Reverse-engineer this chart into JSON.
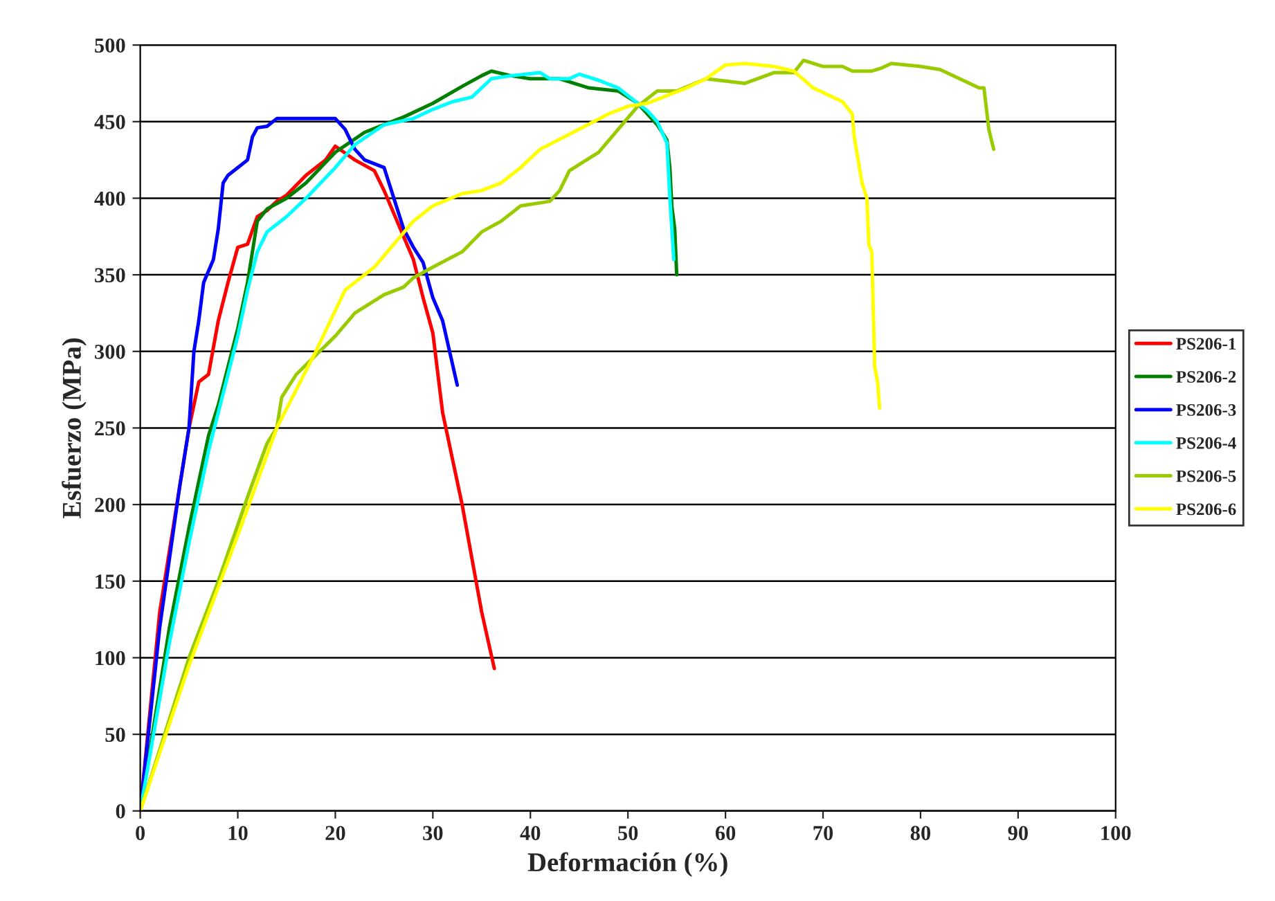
{
  "chart_data": {
    "type": "line",
    "xlabel": "Deformación (%)",
    "ylabel": "Esfuerzo (MPa)",
    "xlim": [
      0,
      100
    ],
    "xticks": [
      0,
      10,
      20,
      30,
      40,
      50,
      60,
      70,
      80,
      90,
      100
    ],
    "ylim": [
      0,
      500
    ],
    "yticks": [
      0,
      50,
      100,
      150,
      200,
      250,
      300,
      350,
      400,
      450,
      500
    ],
    "grid": "y",
    "legend": "right",
    "marker": "none",
    "line_style": "solid",
    "series": [
      {
        "name": "PS206-1",
        "color": "#ff0000",
        "x": [
          0,
          2,
          4,
          5,
          6,
          7,
          8,
          9,
          10,
          11,
          12,
          13,
          14,
          15,
          17,
          19,
          20,
          22,
          24,
          25,
          27,
          28,
          29,
          30,
          31,
          32,
          33,
          34,
          35,
          36.3
        ],
        "values": [
          0,
          130,
          210,
          250,
          280,
          285,
          320,
          345,
          368,
          370,
          388,
          392,
          398,
          402,
          415,
          425,
          434,
          425,
          418,
          405,
          375,
          360,
          335,
          312,
          260,
          230,
          200,
          165,
          130,
          93
        ]
      },
      {
        "name": "PS206-2",
        "color": "#008000",
        "x": [
          0,
          3,
          5,
          7,
          8,
          9,
          10,
          11,
          12,
          13,
          15,
          17,
          20,
          23,
          25,
          27,
          30,
          33,
          35,
          36,
          38,
          40,
          43,
          46,
          49,
          51,
          52,
          53,
          54,
          54.3,
          54.5,
          54.8,
          55
        ],
        "values": [
          0,
          120,
          185,
          245,
          265,
          290,
          315,
          345,
          385,
          393,
          400,
          410,
          430,
          443,
          448,
          453,
          462,
          473,
          480,
          483,
          480,
          478,
          478,
          472,
          470,
          462,
          455,
          448,
          438,
          420,
          395,
          380,
          350
        ]
      },
      {
        "name": "PS206-3",
        "color": "#0000ff",
        "x": [
          0,
          2,
          3,
          4,
          5,
          5.5,
          6,
          6.5,
          7.5,
          8,
          8.5,
          9,
          10,
          11,
          11.5,
          12,
          13,
          14,
          16,
          18,
          20,
          21,
          22,
          23,
          25,
          27,
          28,
          29,
          30,
          31,
          32.5
        ],
        "values": [
          0,
          120,
          165,
          210,
          250,
          300,
          320,
          345,
          360,
          380,
          410,
          415,
          420,
          425,
          440,
          446,
          447,
          452,
          452,
          452,
          452,
          445,
          432,
          425,
          420,
          380,
          368,
          358,
          335,
          320,
          278
        ]
      },
      {
        "name": "PS206-4",
        "color": "#00ffff",
        "x": [
          0,
          3,
          5,
          7,
          9,
          10,
          11,
          12,
          13,
          15,
          17,
          20,
          22,
          25,
          28,
          30,
          32,
          34,
          36,
          38,
          41,
          42,
          44,
          45,
          47,
          49,
          51,
          52,
          53,
          54,
          54.3,
          54.7
        ],
        "values": [
          0,
          110,
          175,
          235,
          285,
          310,
          340,
          365,
          378,
          388,
          400,
          420,
          435,
          448,
          452,
          458,
          463,
          466,
          478,
          480,
          482,
          478,
          478,
          481,
          477,
          472,
          462,
          457,
          450,
          436,
          400,
          360
        ]
      },
      {
        "name": "PS206-5",
        "color": "#99cc00",
        "x": [
          0,
          5,
          8,
          11,
          13,
          14,
          14.5,
          16,
          20,
          22,
          25,
          27,
          28,
          30,
          33,
          35,
          37,
          39,
          42,
          43,
          44,
          47,
          49,
          51,
          53,
          55,
          58,
          62,
          65,
          67,
          68,
          70,
          72,
          73,
          75,
          76,
          77,
          80,
          82,
          84,
          86,
          86.5,
          87,
          87.5
        ],
        "values": [
          0,
          100,
          150,
          205,
          240,
          250,
          270,
          285,
          310,
          325,
          337,
          342,
          348,
          355,
          365,
          378,
          385,
          395,
          398,
          405,
          418,
          430,
          445,
          460,
          470,
          470,
          478,
          475,
          482,
          482,
          490,
          486,
          486,
          483,
          483,
          485,
          488,
          486,
          484,
          478,
          472,
          472,
          445,
          432
        ]
      },
      {
        "name": "PS206-6",
        "color": "#ffff00",
        "x": [
          0,
          5,
          10,
          14,
          18,
          21,
          24,
          26,
          28,
          30,
          33,
          35,
          37,
          39,
          41,
          45,
          48,
          50,
          52,
          54,
          56,
          58,
          60,
          62,
          65,
          67,
          69,
          72,
          73,
          73.2,
          74,
          74.5,
          74.7,
          75,
          75.3,
          75.6,
          75.8
        ],
        "values": [
          0,
          95,
          180,
          250,
          300,
          340,
          355,
          370,
          385,
          395,
          403,
          405,
          410,
          420,
          432,
          445,
          455,
          460,
          462,
          467,
          472,
          478,
          487,
          488,
          486,
          483,
          472,
          463,
          455,
          440,
          410,
          400,
          370,
          365,
          290,
          280,
          263
        ]
      }
    ]
  }
}
